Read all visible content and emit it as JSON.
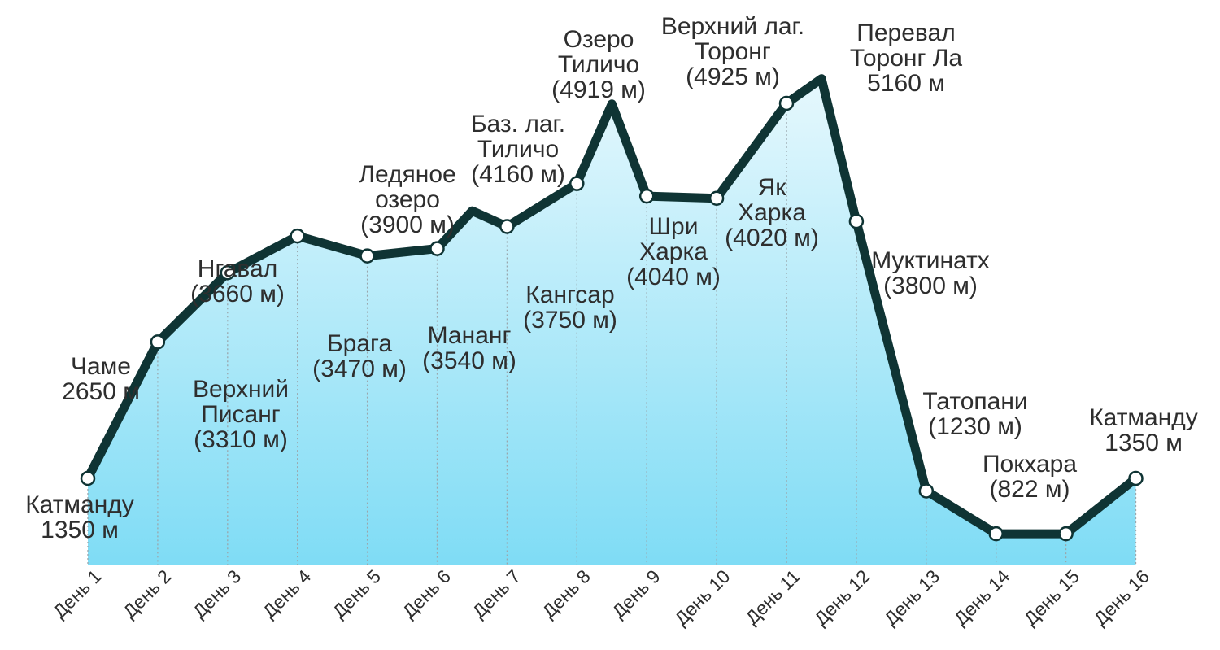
{
  "chart_data": {
    "type": "area",
    "categories": [
      "День 1",
      "День 2",
      "День 3",
      "День 4",
      "День 5",
      "День 6",
      "День 7",
      "День 8",
      "День 9",
      "День 10",
      "День 11",
      "День 12",
      "День 13",
      "День 14",
      "День 15",
      "День 16"
    ],
    "series": [
      {
        "values": [
          1350,
          2650,
          3310,
          3660,
          3470,
          3540,
          3750,
          4160,
          4040,
          4020,
          4925,
          3800,
          1230,
          822,
          822,
          1350
        ],
        "peaks": [
          {
            "after_day": 6,
            "elevation": 3900
          },
          {
            "after_day": 8,
            "elevation": 4919
          },
          {
            "after_day": 11,
            "elevation": 5160
          }
        ]
      }
    ],
    "ylabel": "",
    "xlabel": "",
    "grid": false,
    "colors": {
      "line": "#0f3434",
      "fill_top": "#e6f8fd",
      "fill_bottom": "#7fdcf5"
    },
    "annotations": [
      {
        "id": "kathmandu-start",
        "lines": [
          "Катманду",
          "1350 м"
        ]
      },
      {
        "id": "chame",
        "lines": [
          "Чаме",
          "2650 м"
        ]
      },
      {
        "id": "upper-pisang",
        "lines": [
          "Верхний",
          "Писанг",
          "(3310 м)"
        ]
      },
      {
        "id": "ngawal",
        "lines": [
          "Нгавал",
          "(3660 м)"
        ]
      },
      {
        "id": "braga",
        "lines": [
          "Брага",
          "(3470 м)"
        ]
      },
      {
        "id": "manang",
        "lines": [
          "Мананг",
          "(3540 м)"
        ]
      },
      {
        "id": "ice-lake",
        "lines": [
          "Ледяное",
          "озеро",
          "(3900 м)"
        ]
      },
      {
        "id": "kangsar",
        "lines": [
          "Кангсар",
          "(3750 м)"
        ]
      },
      {
        "id": "tilicho-base",
        "lines": [
          "Баз. лаг.",
          "Тиличо",
          "(4160 м)"
        ]
      },
      {
        "id": "tilicho-lake",
        "lines": [
          "Озеро",
          "Тиличо",
          "(4919 м)"
        ]
      },
      {
        "id": "shri-kharka",
        "lines": [
          "Шри",
          "Харка",
          "(4040 м)"
        ]
      },
      {
        "id": "yak-kharka",
        "lines": [
          "Як",
          "Харка",
          "(4020 м)"
        ]
      },
      {
        "id": "thorong-high-camp",
        "lines": [
          "Верхний лаг.",
          "Торонг",
          "(4925 м)"
        ]
      },
      {
        "id": "thorong-la-pass",
        "lines": [
          "Перевал",
          "Торонг Ла",
          "5160 м"
        ]
      },
      {
        "id": "muktinath",
        "lines": [
          "Муктинатх",
          "(3800 м)"
        ]
      },
      {
        "id": "tatopani",
        "lines": [
          "Татопани",
          "(1230 м)"
        ]
      },
      {
        "id": "pokhara",
        "lines": [
          "Покхара",
          "(822 м)"
        ]
      },
      {
        "id": "kathmandu-end",
        "lines": [
          "Катманду",
          "1350 м"
        ]
      }
    ]
  }
}
